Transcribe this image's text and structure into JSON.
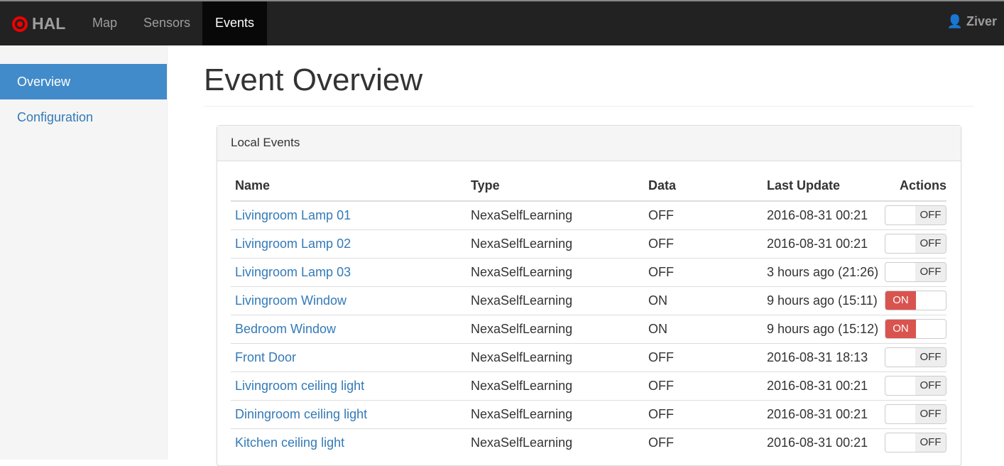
{
  "nav": {
    "brand": "HAL",
    "items": [
      "Map",
      "Sensors",
      "Events"
    ],
    "active": "Events",
    "user": "Ziver"
  },
  "sidebar": {
    "items": [
      "Overview",
      "Configuration"
    ],
    "active": "Overview"
  },
  "page": {
    "title": "Event Overview"
  },
  "panel": {
    "title": "Local Events",
    "columns": [
      "Name",
      "Type",
      "Data",
      "Last Update",
      "Actions"
    ],
    "rows": [
      {
        "name": "Livingroom Lamp 01",
        "type": "NexaSelfLearning",
        "data": "OFF",
        "updated": "2016-08-31 00:21",
        "state": "OFF"
      },
      {
        "name": "Livingroom Lamp 02",
        "type": "NexaSelfLearning",
        "data": "OFF",
        "updated": "2016-08-31 00:21",
        "state": "OFF"
      },
      {
        "name": "Livingroom Lamp 03",
        "type": "NexaSelfLearning",
        "data": "OFF",
        "updated": "3 hours ago (21:26)",
        "state": "OFF"
      },
      {
        "name": "Livingroom Window",
        "type": "NexaSelfLearning",
        "data": "ON",
        "updated": "9 hours ago (15:11)",
        "state": "ON"
      },
      {
        "name": "Bedroom Window",
        "type": "NexaSelfLearning",
        "data": "ON",
        "updated": "9 hours ago (15:12)",
        "state": "ON"
      },
      {
        "name": "Front Door",
        "type": "NexaSelfLearning",
        "data": "OFF",
        "updated": "2016-08-31 18:13",
        "state": "OFF"
      },
      {
        "name": "Livingroom ceiling light",
        "type": "NexaSelfLearning",
        "data": "OFF",
        "updated": "2016-08-31 00:21",
        "state": "OFF"
      },
      {
        "name": "Diningroom ceiling light",
        "type": "NexaSelfLearning",
        "data": "OFF",
        "updated": "2016-08-31 00:21",
        "state": "OFF"
      },
      {
        "name": "Kitchen ceiling light",
        "type": "NexaSelfLearning",
        "data": "OFF",
        "updated": "2016-08-31 00:21",
        "state": "OFF"
      }
    ]
  },
  "colors": {
    "on": "#d9534f",
    "link": "#337ab7",
    "active_sidebar": "#428bca"
  }
}
